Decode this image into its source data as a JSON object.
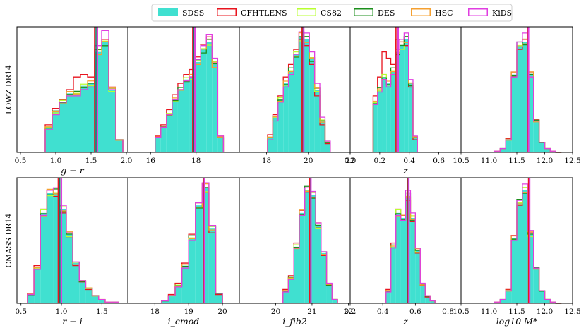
{
  "legend": {
    "placement": "top-center",
    "entries": [
      {
        "name": "SDSS",
        "style": "filled",
        "color": "#40e0d0"
      },
      {
        "name": "CFHTLENS",
        "style": "step",
        "color": "#e8141e"
      },
      {
        "name": "CS82",
        "style": "step",
        "color": "#b8ff30"
      },
      {
        "name": "DES",
        "style": "step",
        "color": "#1c8f1c"
      },
      {
        "name": "HSC",
        "style": "step",
        "color": "#f5a030"
      },
      {
        "name": "KiDS",
        "style": "step",
        "color": "#e03ee0"
      }
    ]
  },
  "chart_data": [
    {
      "type": "histogram",
      "sample": "LOWZ DR14",
      "ylabel": "LOWZ DR14",
      "xlabel": "g − r",
      "xlim": [
        0.45,
        2.02
      ],
      "ticks": [
        0.5,
        1.0,
        1.5,
        2.0
      ],
      "tick_labels": [
        "0.5",
        "1.0",
        "1.5",
        "2.0"
      ],
      "edges": [
        0.85,
        0.95,
        1.05,
        1.15,
        1.25,
        1.35,
        1.45,
        1.55,
        1.65,
        1.75,
        1.85,
        1.95
      ],
      "heights": [
        0.2,
        0.32,
        0.4,
        0.47,
        0.47,
        0.53,
        0.55,
        0.8,
        0.88,
        0.5,
        0.1
      ],
      "variations": {
        "CFHTLENS": [
          0.22,
          0.35,
          0.42,
          0.5,
          0.6,
          0.62,
          0.6,
          0.82,
          0.9,
          0.52,
          0.1
        ],
        "KiDS": [
          0.18,
          0.3,
          0.4,
          0.45,
          0.45,
          0.5,
          0.52,
          0.85,
          0.97,
          0.5,
          0.1
        ]
      },
      "medians": {
        "SDSS": 1.57,
        "CFHTLENS": 1.55,
        "KiDS": 1.59
      }
    },
    {
      "type": "histogram",
      "sample": "LOWZ DR14",
      "xlabel": "",
      "xlim": [
        15.0,
        19.9
      ],
      "ticks": [
        16,
        18
      ],
      "tick_labels": [
        "16",
        "18"
      ],
      "edges": [
        16.2,
        16.45,
        16.7,
        16.95,
        17.2,
        17.45,
        17.7,
        17.95,
        18.2,
        18.45,
        18.7,
        18.95,
        19.2
      ],
      "heights": [
        0.12,
        0.2,
        0.3,
        0.42,
        0.5,
        0.58,
        0.6,
        0.72,
        0.82,
        0.88,
        0.7,
        0.12
      ],
      "variations": {
        "CFHTLENS": [
          0.13,
          0.22,
          0.34,
          0.46,
          0.55,
          0.62,
          0.66,
          0.76,
          0.86,
          0.92,
          0.72,
          0.13
        ],
        "KiDS": [
          0.12,
          0.2,
          0.3,
          0.42,
          0.5,
          0.57,
          0.6,
          0.74,
          0.85,
          0.94,
          0.75,
          0.13
        ]
      },
      "medians": {
        "SDSS": 17.9,
        "CFHTLENS": 17.85,
        "KiDS": 17.95
      }
    },
    {
      "type": "histogram",
      "sample": "LOWZ DR14",
      "xlabel": "",
      "xlim": [
        16.7,
        22.0
      ],
      "ticks": [
        18,
        20,
        22
      ],
      "tick_labels": [
        "18",
        "20",
        "22"
      ],
      "edges": [
        18.05,
        18.3,
        18.55,
        18.8,
        19.05,
        19.3,
        19.55,
        19.8,
        20.05,
        20.3,
        20.55,
        20.8,
        21.05
      ],
      "heights": [
        0.12,
        0.28,
        0.42,
        0.55,
        0.65,
        0.78,
        0.92,
        0.9,
        0.75,
        0.5,
        0.25,
        0.08
      ],
      "variations": {
        "CFHTLENS": [
          0.14,
          0.3,
          0.45,
          0.6,
          0.7,
          0.82,
          0.9,
          0.85,
          0.7,
          0.45,
          0.22,
          0.07
        ],
        "KiDS": [
          0.1,
          0.25,
          0.4,
          0.52,
          0.62,
          0.78,
          0.96,
          0.95,
          0.8,
          0.55,
          0.28,
          0.09
        ]
      },
      "medians": {
        "SDSS": 19.75,
        "CFHTLENS": 19.7,
        "KiDS": 19.78
      }
    },
    {
      "type": "histogram",
      "sample": "LOWZ DR14",
      "xlabel": "z",
      "xlim": [
        0.0,
        0.75
      ],
      "ticks": [
        0.0,
        0.2,
        0.4,
        0.6
      ],
      "tick_labels": [
        "0.0",
        "0.2",
        "0.4",
        "0.6"
      ],
      "edges": [
        0.155,
        0.185,
        0.215,
        0.245,
        0.275,
        0.305,
        0.335,
        0.365,
        0.395,
        0.425,
        0.455
      ],
      "heights": [
        0.4,
        0.5,
        0.6,
        0.55,
        0.65,
        0.8,
        0.85,
        0.9,
        0.55,
        0.12
      ],
      "variations": {
        "CFHTLENS": [
          0.45,
          0.6,
          0.8,
          0.75,
          0.7,
          0.9,
          0.88,
          0.85,
          0.52,
          0.1
        ],
        "KiDS": [
          0.38,
          0.48,
          0.58,
          0.52,
          0.62,
          0.82,
          0.9,
          0.95,
          0.58,
          0.13
        ]
      },
      "medians": {
        "SDSS": 0.32,
        "CFHTLENS": 0.31,
        "KiDS": 0.325
      }
    },
    {
      "type": "histogram",
      "sample": "LOWZ DR14",
      "xlabel": "",
      "xlim": [
        10.5,
        12.5
      ],
      "ticks": [
        10.5,
        11.0,
        11.5,
        12.0,
        12.5
      ],
      "tick_labels": [
        "10.5",
        "11.0",
        "11.5",
        "12.0",
        "12.5"
      ],
      "edges": [
        11.1,
        11.2,
        11.3,
        11.4,
        11.5,
        11.6,
        11.7,
        11.8,
        11.9,
        12.0,
        12.1,
        12.2,
        12.3
      ],
      "heights": [
        0.01,
        0.03,
        0.1,
        0.62,
        0.85,
        0.88,
        0.62,
        0.25,
        0.08,
        0.03,
        0.01,
        0.0
      ],
      "variations": {
        "CFHTLENS": [
          0.01,
          0.03,
          0.11,
          0.64,
          0.82,
          0.9,
          0.64,
          0.26,
          0.08,
          0.03,
          0.01,
          0.0
        ],
        "KiDS": [
          0.01,
          0.03,
          0.1,
          0.6,
          0.88,
          0.95,
          0.6,
          0.25,
          0.08,
          0.03,
          0.01,
          0.0
        ]
      },
      "medians": {
        "SDSS": 11.7,
        "CFHTLENS": 11.69,
        "KiDS": 11.71
      }
    },
    {
      "type": "histogram",
      "sample": "CMASS DR14",
      "ylabel": "CMASS DR14",
      "xlabel": "r − i",
      "xlim": [
        0.45,
        1.82
      ],
      "ticks": [
        0.5,
        1.0,
        1.5
      ],
      "tick_labels": [
        "0.5",
        "1.0",
        "1.5"
      ],
      "edges": [
        0.58,
        0.66,
        0.74,
        0.82,
        0.9,
        0.98,
        1.06,
        1.14,
        1.22,
        1.3,
        1.38,
        1.46,
        1.54,
        1.62,
        1.7
      ],
      "heights": [
        0.07,
        0.28,
        0.72,
        0.88,
        0.88,
        0.75,
        0.55,
        0.32,
        0.18,
        0.12,
        0.06,
        0.03,
        0.01,
        0.01
      ],
      "variations": {
        "CFHTLENS": [
          0.08,
          0.3,
          0.75,
          0.9,
          0.85,
          0.72,
          0.53,
          0.3,
          0.17,
          0.11,
          0.06,
          0.03,
          0.01,
          0.01
        ],
        "KiDS": [
          0.07,
          0.27,
          0.7,
          0.9,
          0.92,
          0.78,
          0.56,
          0.33,
          0.18,
          0.12,
          0.06,
          0.03,
          0.01,
          0.01
        ]
      },
      "medians": {
        "SDSS": 0.98,
        "CFHTLENS": 0.96,
        "KiDS": 1.0
      }
    },
    {
      "type": "histogram",
      "sample": "CMASS DR14",
      "xlabel": "i_cmod",
      "xlim": [
        17.2,
        20.5
      ],
      "ticks": [
        18,
        19,
        20
      ],
      "tick_labels": [
        "18",
        "19",
        "20"
      ],
      "edges": [
        18.2,
        18.4,
        18.6,
        18.8,
        19.0,
        19.2,
        19.4,
        19.6,
        19.8,
        20.0
      ],
      "heights": [
        0.02,
        0.06,
        0.14,
        0.3,
        0.52,
        0.78,
        0.92,
        0.6,
        0.08
      ],
      "variations": {
        "CFHTLENS": [
          0.02,
          0.07,
          0.16,
          0.32,
          0.55,
          0.8,
          0.88,
          0.56,
          0.07
        ],
        "KiDS": [
          0.02,
          0.06,
          0.13,
          0.28,
          0.5,
          0.8,
          0.96,
          0.62,
          0.08
        ]
      },
      "medians": {
        "SDSS": 19.45,
        "CFHTLENS": 19.43,
        "KiDS": 19.47
      }
    },
    {
      "type": "histogram",
      "sample": "CMASS DR14",
      "xlabel": "i_fib2",
      "xlim": [
        19.0,
        22.05
      ],
      "ticks": [
        20,
        21,
        22
      ],
      "tick_labels": [
        "20",
        "21",
        "22"
      ],
      "edges": [
        20.2,
        20.35,
        20.5,
        20.65,
        20.8,
        20.95,
        21.1,
        21.25,
        21.4,
        21.55,
        21.7
      ],
      "heights": [
        0.1,
        0.2,
        0.45,
        0.72,
        0.9,
        0.86,
        0.62,
        0.4,
        0.15,
        0.03
      ],
      "variations": {
        "CFHTLENS": [
          0.11,
          0.22,
          0.48,
          0.74,
          0.88,
          0.84,
          0.6,
          0.38,
          0.14,
          0.03
        ],
        "KiDS": [
          0.09,
          0.19,
          0.44,
          0.7,
          0.92,
          0.89,
          0.64,
          0.41,
          0.16,
          0.03
        ]
      },
      "medians": {
        "SDSS": 20.95,
        "CFHTLENS": 20.93,
        "KiDS": 20.97
      }
    },
    {
      "type": "histogram",
      "sample": "CMASS DR14",
      "xlabel": "z",
      "xlim": [
        0.2,
        0.88
      ],
      "ticks": [
        0.2,
        0.4,
        0.6,
        0.8
      ],
      "tick_labels": [
        "0.2",
        "0.4",
        "0.6",
        "0.8"
      ],
      "edges": [
        0.42,
        0.45,
        0.48,
        0.51,
        0.54,
        0.57,
        0.6,
        0.63,
        0.66,
        0.69,
        0.72
      ],
      "heights": [
        0.1,
        0.45,
        0.72,
        0.68,
        0.85,
        0.68,
        0.42,
        0.15,
        0.06,
        0.02
      ],
      "variations": {
        "CFHTLENS": [
          0.11,
          0.48,
          0.75,
          0.7,
          0.82,
          0.65,
          0.4,
          0.14,
          0.05,
          0.02
        ],
        "KiDS": [
          0.09,
          0.44,
          0.7,
          0.66,
          0.9,
          0.72,
          0.44,
          0.16,
          0.06,
          0.02
        ]
      },
      "medians": {
        "SDSS": 0.555,
        "CFHTLENS": 0.55,
        "KiDS": 0.56
      }
    },
    {
      "type": "histogram",
      "sample": "CMASS DR14",
      "xlabel": "log10 M*",
      "xlim": [
        10.5,
        12.5
      ],
      "ticks": [
        10.5,
        11.0,
        11.5,
        12.0,
        12.5
      ],
      "tick_labels": [
        "10.5",
        "11.0",
        "11.5",
        "12.0",
        "12.5"
      ],
      "edges": [
        11.1,
        11.2,
        11.3,
        11.4,
        11.5,
        11.6,
        11.7,
        11.8,
        11.9,
        12.0,
        12.1,
        12.2,
        12.3
      ],
      "heights": [
        0.01,
        0.03,
        0.1,
        0.52,
        0.8,
        0.9,
        0.55,
        0.28,
        0.1,
        0.03,
        0.01,
        0.0
      ],
      "variations": {
        "CFHTLENS": [
          0.01,
          0.03,
          0.11,
          0.54,
          0.78,
          0.88,
          0.56,
          0.28,
          0.1,
          0.03,
          0.01,
          0.0
        ],
        "KiDS": [
          0.01,
          0.03,
          0.1,
          0.5,
          0.82,
          0.95,
          0.58,
          0.28,
          0.1,
          0.03,
          0.01,
          0.0
        ]
      },
      "medians": {
        "SDSS": 11.72,
        "CFHTLENS": 11.71,
        "KiDS": 11.73
      }
    }
  ]
}
